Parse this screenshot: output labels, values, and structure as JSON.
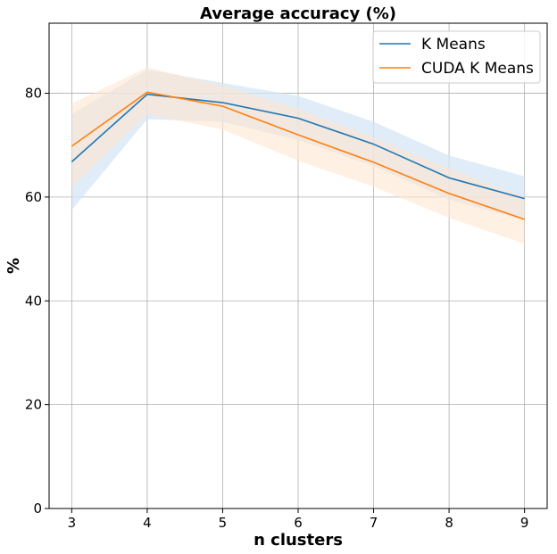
{
  "chart_data": {
    "type": "line",
    "title": "Average accuracy (%)",
    "xlabel": "n clusters",
    "ylabel": "%",
    "x": [
      3,
      4,
      5,
      6,
      7,
      8,
      9
    ],
    "xlim": [
      2.7,
      9.3
    ],
    "ylim": [
      0,
      93.5
    ],
    "xticks": [
      "3",
      "4",
      "5",
      "6",
      "7",
      "8",
      "9"
    ],
    "yticks": [
      "0",
      "20",
      "40",
      "60",
      "80"
    ],
    "ytick_values": [
      0,
      20,
      40,
      60,
      80
    ],
    "grid": true,
    "legend_position": "top-right",
    "series": [
      {
        "name": "K Means",
        "color": "#1f77b4",
        "band_color": "#d6e6f5",
        "values": [
          66.8,
          79.8,
          78.2,
          75.2,
          70.2,
          63.7,
          59.7
        ],
        "lower": [
          57.5,
          75.0,
          74.5,
          71.0,
          66.0,
          59.5,
          55.5
        ],
        "upper": [
          76.0,
          84.5,
          82.0,
          79.5,
          74.5,
          68.0,
          64.0
        ]
      },
      {
        "name": "CUDA K Means",
        "color": "#ff7f0e",
        "band_color": "#fde6d0",
        "values": [
          69.8,
          80.2,
          77.5,
          72.0,
          66.7,
          60.7,
          55.7
        ],
        "lower": [
          62.0,
          76.0,
          73.0,
          67.0,
          62.0,
          56.0,
          51.0
        ],
        "upper": [
          78.0,
          85.0,
          81.5,
          77.0,
          71.5,
          65.5,
          60.0
        ]
      }
    ]
  }
}
